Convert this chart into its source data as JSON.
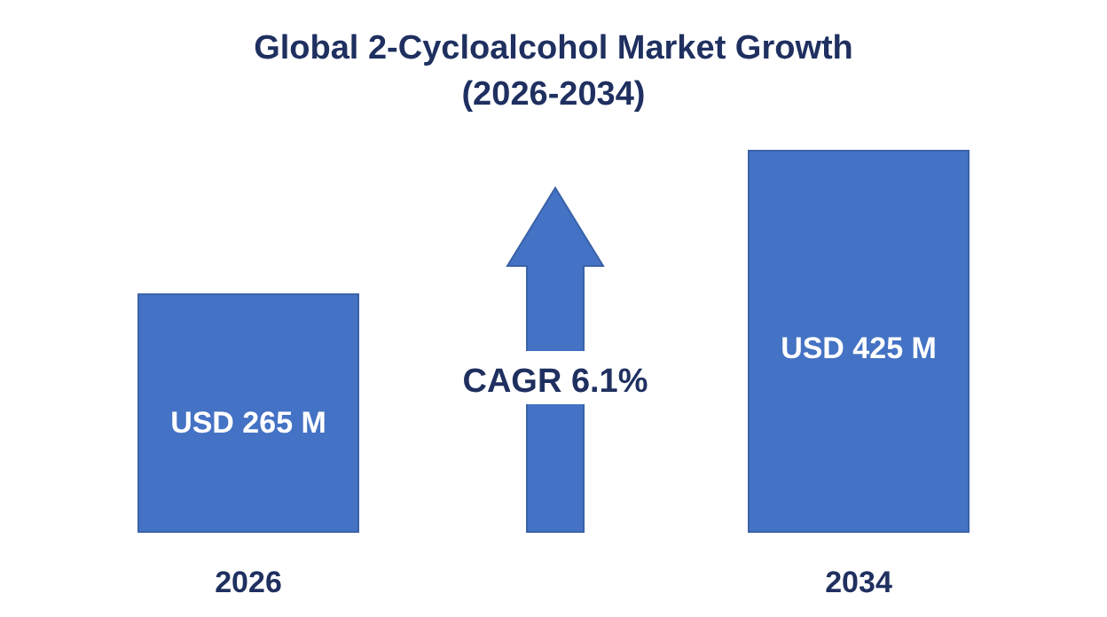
{
  "chart_data": {
    "type": "bar",
    "title": "Global 2-Cycloalcohol Market Growth\n(2026-2034)",
    "categories": [
      "2026",
      "2034"
    ],
    "values": [
      265,
      425
    ],
    "color": "#4472c4",
    "value_labels": [
      "USD 265 M",
      "USD 425 M"
    ],
    "annotations": [
      "CAGR 6.1%"
    ]
  }
}
